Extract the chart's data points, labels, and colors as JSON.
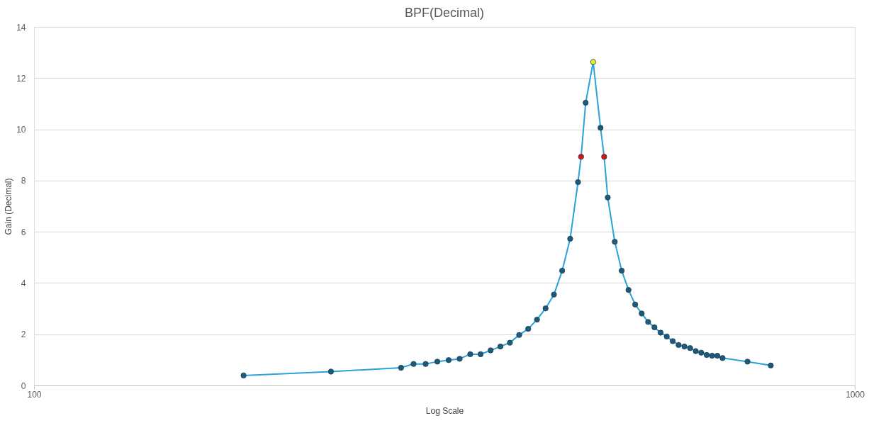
{
  "chart_data": {
    "type": "line",
    "title": "BPF(Decimal)",
    "xlabel": "Log Scale",
    "ylabel": "Gain (Decimal)",
    "log": "x",
    "xlim": [
      100,
      1000
    ],
    "xticks": [
      100,
      1000
    ],
    "ylim": [
      0,
      14
    ],
    "yticks": [
      0,
      2,
      4,
      6,
      8,
      10,
      12,
      14
    ],
    "grid": "y",
    "marker": "circle",
    "line_style": "solid",
    "x": [
      180,
      230,
      280,
      290,
      300,
      310,
      320,
      330,
      340,
      350,
      360,
      370,
      380,
      390,
      400,
      410,
      420,
      430,
      440,
      450,
      460,
      464,
      470,
      480,
      490,
      495,
      500,
      510,
      520,
      530,
      540,
      550,
      560,
      570,
      580,
      590,
      600,
      610,
      620,
      630,
      640,
      650,
      660,
      670,
      680,
      690,
      740,
      790
    ],
    "series": [
      {
        "color": "#29a3d9",
        "values": [
          0.39,
          0.54,
          0.69,
          0.84,
          0.84,
          0.93,
          0.99,
          1.04,
          1.22,
          1.22,
          1.37,
          1.52,
          1.67,
          1.97,
          2.21,
          2.57,
          3.01,
          3.55,
          4.48,
          5.73,
          7.94,
          8.93,
          11.04,
          12.63,
          10.06,
          8.93,
          7.34,
          5.61,
          4.48,
          3.73,
          3.16,
          2.81,
          2.48,
          2.27,
          2.06,
          1.91,
          1.73,
          1.58,
          1.52,
          1.46,
          1.34,
          1.28,
          1.19,
          1.16,
          1.16,
          1.07,
          0.93,
          0.78
        ],
        "colors": [
          "#1d5a78",
          "#1d5a78",
          "#1d5a78",
          "#1d5a78",
          "#1d5a78",
          "#1d5a78",
          "#1d5a78",
          "#1d5a78",
          "#1d5a78",
          "#1d5a78",
          "#1d5a78",
          "#1d5a78",
          "#1d5a78",
          "#1d5a78",
          "#1d5a78",
          "#1d5a78",
          "#1d5a78",
          "#1d5a78",
          "#1d5a78",
          "#1d5a78",
          "#1d5a78",
          "#e01010",
          "#1d5a78",
          "#e8f020",
          "#1d5a78",
          "#e01010",
          "#1d5a78",
          "#1d5a78",
          "#1d5a78",
          "#1d5a78",
          "#1d5a78",
          "#1d5a78",
          "#1d5a78",
          "#1d5a78",
          "#1d5a78",
          "#1d5a78",
          "#1d5a78",
          "#1d5a78",
          "#1d5a78",
          "#1d5a78",
          "#1d5a78",
          "#1d5a78",
          "#1d5a78",
          "#1d5a78",
          "#1d5a78",
          "#1d5a78",
          "#1d5a78",
          "#1d5a78"
        ]
      }
    ]
  }
}
